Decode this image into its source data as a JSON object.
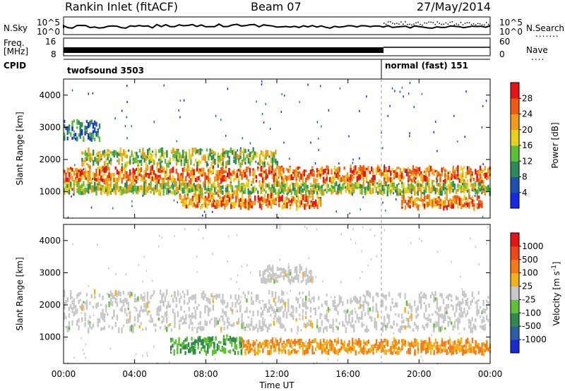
{
  "header": {
    "station": "Rankin Inlet (fitACF)",
    "beam": "Beam 07",
    "date": "27/May/2014"
  },
  "summary": {
    "nsky_label": "N.Sky",
    "nsearch_label": "N.Search",
    "nsky_top": "10^5",
    "nsky_bottom": "10^0",
    "nsearch_top": "10^5",
    "nsearch_bottom": "10^0",
    "freq_label": "Freq.",
    "freq_unit": "[MHz]",
    "freq_top": "16",
    "freq_bottom": "8",
    "nave_label": "Nave",
    "nave_top": "60",
    "nave_bottom": "0",
    "cpid_label": "CPID",
    "cpid_1": "twofsound 3503",
    "cpid_2": "normal (fast) 151"
  },
  "chart_data": [
    {
      "type": "heatmap",
      "panel": "power",
      "ylabel": "Slant Range [km]",
      "ylim": [
        180,
        4500
      ],
      "yticks": [
        "1000",
        "2000",
        "3000",
        "4000"
      ],
      "xlim": [
        0,
        24
      ],
      "colorbar": {
        "label": "Power [dB]",
        "ticks": [
          "4",
          "8",
          "12",
          "16",
          "20",
          "24",
          "28"
        ],
        "colors": [
          "#1428e6",
          "#1e50b4",
          "#2e8a5a",
          "#5cbf3a",
          "#e6d21e",
          "#f29a1a",
          "#f05a14",
          "#e61414"
        ]
      },
      "bands": [
        {
          "range": [
            1300,
            1750
          ],
          "from": 0.0,
          "to": 24.0,
          "level": "high"
        },
        {
          "range": [
            500,
            900
          ],
          "from": 6.5,
          "to": 14.5,
          "level": "high"
        },
        {
          "range": [
            500,
            850
          ],
          "from": 19.0,
          "to": 23.5,
          "level": "high"
        },
        {
          "range": [
            1800,
            2300
          ],
          "from": 1.0,
          "to": 12.0,
          "level": "mid"
        },
        {
          "range": [
            2600,
            3200
          ],
          "from": 0.0,
          "to": 2.0,
          "level": "low"
        },
        {
          "range": [
            950,
            1250
          ],
          "from": 0.0,
          "to": 24.0,
          "level": "mid"
        }
      ]
    },
    {
      "type": "heatmap",
      "panel": "velocity",
      "ylabel": "Slant Range [km]",
      "ylim": [
        180,
        4500
      ],
      "yticks": [
        "1000",
        "2000",
        "3000",
        "4000"
      ],
      "xlabel": "Time UT",
      "xticks": [
        "00:00",
        "04:00",
        "08:00",
        "12:00",
        "16:00",
        "20:00",
        "00:00"
      ],
      "xlim": [
        0,
        24
      ],
      "colorbar": {
        "label": "Velocity [m s",
        "label_sup": "-1",
        "label_end": "]",
        "ticks": [
          "1000",
          "500",
          "100",
          "25",
          "-25",
          "-100",
          "-500",
          "-1000"
        ],
        "colors": [
          "#1a2ad2",
          "#2a5fa8",
          "#2e8a4a",
          "#60c035",
          "#c8c8c8",
          "#f2b21a",
          "#f57a1a",
          "#f0461a",
          "#e61414"
        ]
      },
      "bands": [
        {
          "range": [
            1200,
            2400
          ],
          "from": 0.0,
          "to": 24.0,
          "level": "ground"
        },
        {
          "range": [
            500,
            1000
          ],
          "from": 6.0,
          "to": 10.0,
          "level": "toward"
        },
        {
          "range": [
            500,
            900
          ],
          "from": 10.0,
          "to": 24.0,
          "level": "away"
        },
        {
          "range": [
            2700,
            3200
          ],
          "from": 11.0,
          "to": 14.0,
          "level": "ground"
        }
      ],
      "mode_change_time": 18.0
    }
  ]
}
